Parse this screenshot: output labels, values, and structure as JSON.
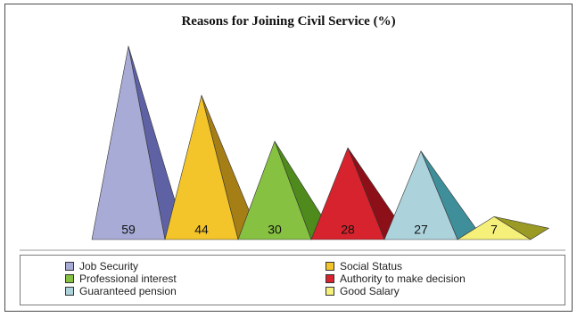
{
  "chart_data": {
    "type": "bar",
    "title": "Reasons for Joining Civil Service (%)",
    "categories": [
      "Job Security",
      "Social Status",
      "Professional interest",
      "Authority to make decision",
      "Guaranteed pension",
      "Good Salary"
    ],
    "values": [
      59,
      44,
      30,
      28,
      27,
      7
    ],
    "data_labels": [
      "59",
      "44",
      "30",
      "28",
      "27",
      "7"
    ],
    "colors": [
      "#a8abd6",
      "#f3c52a",
      "#86c141",
      "#d7232d",
      "#acd3dc",
      "#f5f07a"
    ],
    "shade_colors": [
      "#5e61a3",
      "#a57e16",
      "#4f8a1d",
      "#8d0f17",
      "#3f8f9b",
      "#9a9a24"
    ],
    "bar_shape": "pyramid",
    "legend": {
      "position": "bottom",
      "columns": 2,
      "entries": [
        "Job Security",
        "Social Status",
        "Professional interest",
        "Authority to make decision",
        "Guaranteed pension",
        "Good Salary"
      ]
    },
    "grid": false,
    "xlabel": "",
    "ylabel": "",
    "ylim": [
      0,
      60
    ]
  }
}
